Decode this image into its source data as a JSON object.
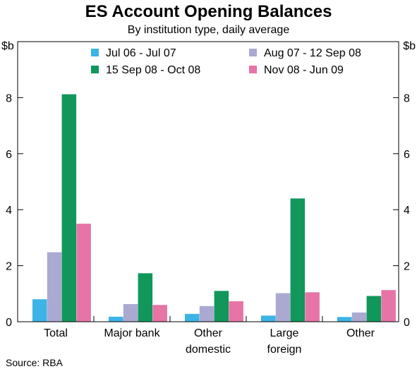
{
  "chart_data": {
    "type": "bar",
    "title": "ES Account Opening Balances",
    "subtitle": "By institution type, daily average",
    "unit_left": "$b",
    "unit_right": "$b",
    "source": "Source: RBA",
    "ylim": [
      0,
      10
    ],
    "yticks": [
      0,
      2,
      4,
      6,
      8
    ],
    "grid": false,
    "legend_position": "top",
    "categories": [
      [
        "Total"
      ],
      [
        "Major bank"
      ],
      [
        "Other",
        "domestic"
      ],
      [
        "Large",
        "foreign"
      ],
      [
        "Other"
      ]
    ],
    "series": [
      {
        "name": "Jul 06 - Jul 07",
        "color": "#3cb4e6",
        "values": [
          0.8,
          0.18,
          0.28,
          0.22,
          0.17
        ]
      },
      {
        "name": "Aug 07 - 12 Sep 08",
        "color": "#a9a9d2",
        "values": [
          2.48,
          0.63,
          0.56,
          1.02,
          0.33
        ]
      },
      {
        "name": "15 Sep 08 - Oct 08",
        "color": "#11975a",
        "values": [
          8.12,
          1.73,
          1.1,
          4.4,
          0.92
        ]
      },
      {
        "name": "Nov 08 - Jun 09",
        "color": "#e774a6",
        "values": [
          3.5,
          0.6,
          0.73,
          1.05,
          1.13
        ]
      }
    ]
  }
}
